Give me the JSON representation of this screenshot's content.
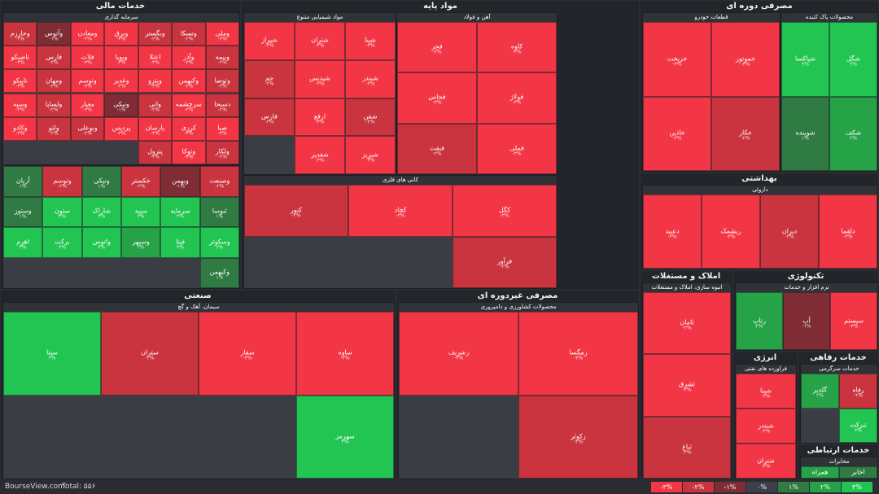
{
  "chart_data": {
    "type": "treemap",
    "title": "",
    "sectors": [
      {
        "name": "خدمات مالی",
        "groups": [
          {
            "name": "سرمایه گذاری",
            "stocks": [
              {
                "s": "وملی",
                "c": -3
              },
              {
                "s": "وتسکا",
                "c": -2
              },
              {
                "s": "وبگستر",
                "c": -2
              },
              {
                "s": "وبرق",
                "c": -3
              },
              {
                "s": "ومعادن",
                "c": -3
              },
              {
                "s": "وآتوس",
                "c": -1
              },
              {
                "s": "وخارزم",
                "c": -2
              },
              {
                "s": "وبیمه",
                "c": -2
              },
              {
                "s": "وآذر",
                "c": -3
              },
              {
                "s": "اعتلا",
                "c": -3
              },
              {
                "s": "وپویا",
                "c": -3
              },
              {
                "s": "فلات",
                "c": -3
              },
              {
                "s": "فارس",
                "c": -2
              },
              {
                "s": "تاصیکو",
                "c": -3
              },
              {
                "s": "وتوصا",
                "c": -2
              },
              {
                "s": "وکبهمن",
                "c": -3
              },
              {
                "s": "وپترو",
                "c": -3
              },
              {
                "s": "وغدیر",
                "c": -3
              },
              {
                "s": "وتوسم",
                "c": -3
              },
              {
                "s": "ومهان",
                "c": -2
              },
              {
                "s": "تاپیکو",
                "c": -3
              },
              {
                "s": "دسبحا",
                "c": -2
              },
              {
                "s": "سرچشمه",
                "c": -3
              },
              {
                "s": "واتی",
                "c": -2
              },
              {
                "s": "ونیکی",
                "c": -1
              },
              {
                "s": "معیار",
                "c": -3
              },
              {
                "s": "ولساپا",
                "c": -2
              },
              {
                "s": "وسپه",
                "c": -3
              },
              {
                "s": "صبا",
                "c": -3
              },
              {
                "s": "کرزی",
                "c": -3
              },
              {
                "s": "پارسان",
                "c": -3
              },
              {
                "s": "پردیس",
                "c": -3
              },
              {
                "s": "وبوعلی",
                "c": -2
              },
              {
                "s": "ولتو",
                "c": -2
              },
              {
                "s": "وکادو",
                "c": -3
              },
              {
                "s": "ولکار",
                "c": -2
              },
              {
                "s": "وتوکا",
                "c": -3
              },
              {
                "s": "پترول",
                "c": -2
              }
            ]
          },
          {
            "name": "",
            "stocks": [
              {
                "s": "وصنعت",
                "c": -2
              },
              {
                "s": "وبهمن",
                "c": -1
              },
              {
                "s": "خکستر",
                "c": -2
              },
              {
                "s": "ونیکی",
                "c": 1
              },
              {
                "s": "وتوسم",
                "c": -2
              },
              {
                "s": "آریان",
                "c": 1
              },
              {
                "s": "ثنوسا",
                "c": 1
              },
              {
                "s": "سرمایه",
                "c": 3
              },
              {
                "s": "سپید",
                "c": 3
              },
              {
                "s": "شاراک",
                "c": 3
              },
              {
                "s": "ستون",
                "c": 3
              },
              {
                "s": "وستوز",
                "c": 1
              },
              {
                "s": "وسکوثر",
                "c": 3
              },
              {
                "s": "فیتا",
                "c": 3
              },
              {
                "s": "وسپهر",
                "c": 2
              },
              {
                "s": "واتوس",
                "c": 3
              },
              {
                "s": "برکت",
                "c": 3
              },
              {
                "s": "اهرم",
                "c": 3
              },
              {
                "s": "وکبهمن",
                "c": 1
              }
            ]
          }
        ]
      },
      {
        "name": "مواد پایه",
        "groups": [
          {
            "name": "مواد شیمیایی متنوع",
            "stocks": [
              {
                "s": "شپنا",
                "c": -3
              },
              {
                "s": "شتران",
                "c": -3
              },
              {
                "s": "شیراز",
                "c": -3
              },
              {
                "s": "شبندر",
                "c": -3
              },
              {
                "s": "شپدیس",
                "c": -3
              },
              {
                "s": "جم",
                "c": -2
              },
              {
                "s": "شفن",
                "c": -2
              },
              {
                "s": "ارفع",
                "c": -3
              },
              {
                "s": "فارس",
                "c": -2
              },
              {
                "s": "شبریز",
                "c": -3
              },
              {
                "s": "شغدیر",
                "c": -3
              }
            ]
          },
          {
            "name": "آهن و فولاد",
            "stocks": [
              {
                "s": "کاوه",
                "c": -3
              },
              {
                "s": "فجر",
                "c": -3
              },
              {
                "s": "فولاژ",
                "c": -3
              },
              {
                "s": "فخاس",
                "c": -3
              },
              {
                "s": "فملی",
                "c": -3
              },
              {
                "s": "فنفت",
                "c": -2
              }
            ]
          },
          {
            "name": "کانی های فلزی",
            "stocks": [
              {
                "s": "کگل",
                "c": -3
              },
              {
                "s": "کچاد",
                "c": -3
              },
              {
                "s": "کنور",
                "c": -2
              },
              {
                "s": "فرآور",
                "c": -2
              }
            ]
          }
        ]
      },
      {
        "name": "مصرفی دوره ای",
        "groups": [
          {
            "name": "قطعات خودرو",
            "stocks": [
              {
                "s": "خموتور",
                "c": -3
              },
              {
                "s": "خریخت",
                "c": -3
              },
              {
                "s": "خکار",
                "c": -2
              },
              {
                "s": "خاذین",
                "c": -3
              }
            ]
          },
          {
            "name": "محصولات پاک کننده",
            "stocks": [
              {
                "s": "شگل",
                "c": 3
              },
              {
                "s": "شپاکسا",
                "c": 3
              },
              {
                "s": "شکف",
                "c": 2
              },
              {
                "s": "شوینده",
                "c": 1
              }
            ]
          }
        ]
      },
      {
        "name": "بهداشتی",
        "groups": [
          {
            "name": "داروئی",
            "stocks": [
              {
                "s": "دلقما",
                "c": -3
              },
              {
                "s": "دیران",
                "c": -2
              },
              {
                "s": "ریشمک",
                "c": -3
              },
              {
                "s": "دعبید",
                "c": -3
              }
            ]
          }
        ]
      },
      {
        "name": "صنعتی",
        "groups": [
          {
            "name": "سیمان، آهک و گچ",
            "stocks": [
              {
                "s": "ساوه",
                "c": -3
              },
              {
                "s": "سفار",
                "c": -3
              },
              {
                "s": "ستران",
                "c": -2
              },
              {
                "s": "سیتا",
                "c": 3
              },
              {
                "s": "سهرمز",
                "c": 3
              }
            ]
          }
        ]
      },
      {
        "name": "مصرفی غیردوره ای",
        "groups": [
          {
            "name": "محصولات کشاورزی و دامپروری",
            "stocks": [
              {
                "s": "زمگسا",
                "c": -3
              },
              {
                "s": "زشریف",
                "c": -3
              },
              {
                "s": "زکوثر",
                "c": -2
              }
            ]
          }
        ]
      },
      {
        "name": "املاک و مستغلات",
        "groups": [
          {
            "name": "انبوه سازی، املاک و مستغلات",
            "stocks": [
              {
                "s": "ثامان",
                "c": -3
              },
              {
                "s": "ثشرق",
                "c": -3
              },
              {
                "s": "ثباغ",
                "c": -2
              }
            ]
          }
        ]
      },
      {
        "name": "تکنولوژی",
        "groups": [
          {
            "name": "ترم افزار و خدمات",
            "stocks": [
              {
                "s": "سیستم",
                "c": -3
              },
              {
                "s": "آپ",
                "c": -1
              },
              {
                "s": "رتاپ",
                "c": 2
              }
            ]
          }
        ]
      },
      {
        "name": "انرژی",
        "groups": [
          {
            "name": "فراورده های نفتی",
            "stocks": [
              {
                "s": "شپنا",
                "c": -3
              },
              {
                "s": "شبندر",
                "c": -3
              },
              {
                "s": "شتران",
                "c": -3
              }
            ]
          }
        ]
      },
      {
        "name": "خدمات رفاهی",
        "groups": [
          {
            "name": "خدمات سرگرمی",
            "stocks": [
              {
                "s": "رفاه",
                "c": -2
              },
              {
                "s": "گلدیر",
                "c": 2
              },
              {
                "s": "تبرکت",
                "c": 3
              }
            ]
          }
        ]
      },
      {
        "name": "خدمات ارتباطی",
        "groups": [
          {
            "name": "مخابرات",
            "stocks": [
              {
                "s": "اخابر",
                "c": 1
              },
              {
                "s": "همراه",
                "c": 2
              }
            ]
          }
        ]
      }
    ],
    "legend": {
      "labels": [
        "-۳%",
        "-۲%",
        "-۱%",
        "۰%",
        "۱%",
        "۲%",
        "۳%"
      ],
      "colors": [
        "#f23645",
        "#c9343f",
        "#7f2c35",
        "#3d4048",
        "#2f7b43",
        "#27a347",
        "#23c552"
      ]
    }
  },
  "footer": {
    "brand": "BourseView.com",
    "total": "Total: ۵۵۶"
  }
}
